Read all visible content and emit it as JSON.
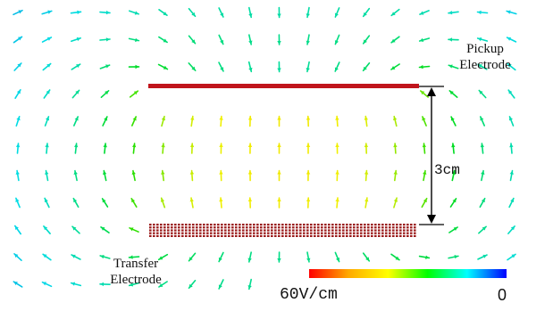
{
  "labels": {
    "pickup_line1": "Pickup",
    "pickup_line2": "Electrode",
    "transfer_line1": "Transfer",
    "transfer_line2": "Electrode",
    "gap": "3cm"
  },
  "colorbar": {
    "max_label": "60V/cm",
    "min_label": "0",
    "gradient": [
      "#ff0000",
      "#ffaa00",
      "#ffff00",
      "#00ff00",
      "#00ffff",
      "#0000ff"
    ]
  },
  "colors": {
    "pickup_electrode": "#c0141c",
    "transfer_electrode": "#9a1a1a",
    "dimension_line": "#000000"
  }
}
